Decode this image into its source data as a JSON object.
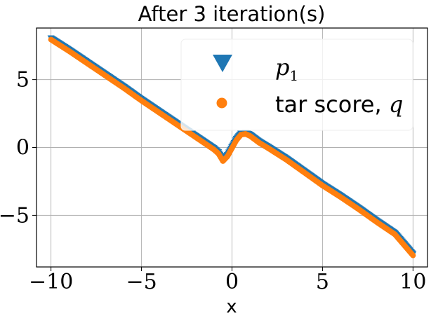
{
  "chart_data": {
    "type": "scatter",
    "title": "After 3 iteration(s)",
    "xlabel": "x",
    "ylabel": "",
    "xlim": [
      -10.8,
      10.8
    ],
    "ylim": [
      -8.8,
      8.8
    ],
    "xticks": [
      -10,
      -5,
      0,
      5,
      10
    ],
    "xtick_labels": [
      "−10",
      "−5",
      "0",
      "5",
      "10"
    ],
    "yticks": [
      -5,
      0,
      5
    ],
    "ytick_labels": [
      "−5",
      "0",
      "5"
    ],
    "grid": true,
    "legend_position": "top-right",
    "series": [
      {
        "name": "p1",
        "marker": "triangle-down",
        "color": "#1f77b4",
        "x": [
          -10,
          -9,
          -8,
          -7,
          -6,
          -5,
          -4,
          -3,
          -2,
          -1.5,
          -1,
          -0.75,
          -0.5,
          -0.25,
          0,
          0.25,
          0.5,
          0.75,
          1,
          1.5,
          2,
          3,
          4,
          5,
          6,
          7,
          8,
          9,
          10
        ],
        "y": [
          8.05,
          7.2,
          6.3,
          5.4,
          4.5,
          3.55,
          2.65,
          1.75,
          0.85,
          0.4,
          -0.05,
          -0.35,
          -0.9,
          -0.55,
          0.05,
          0.65,
          1.05,
          1.1,
          0.95,
          0.45,
          0.05,
          -0.8,
          -1.75,
          -2.7,
          -3.55,
          -4.45,
          -5.4,
          -6.3,
          -7.85
        ]
      },
      {
        "name": "tar score, q",
        "marker": "circle",
        "color": "#ff7f0e",
        "x": [
          -10,
          -9,
          -8,
          -7,
          -6,
          -5,
          -4,
          -3,
          -2,
          -1.5,
          -1,
          -0.75,
          -0.5,
          -0.25,
          0,
          0.25,
          0.5,
          0.75,
          1,
          1.5,
          2,
          3,
          4,
          5,
          6,
          7,
          8,
          9,
          10
        ],
        "y": [
          7.95,
          7.1,
          6.2,
          5.3,
          4.4,
          3.45,
          2.55,
          1.65,
          0.75,
          0.3,
          -0.15,
          -0.45,
          -1.0,
          -0.65,
          -0.05,
          0.55,
          0.95,
          1.0,
          0.85,
          0.35,
          -0.05,
          -0.9,
          -1.85,
          -2.8,
          -3.65,
          -4.55,
          -5.5,
          -6.4,
          -7.95
        ]
      }
    ]
  },
  "legend": {
    "p1_base": "p",
    "p1_sub": "1",
    "q_text": "tar score, ",
    "q_var": "q"
  }
}
